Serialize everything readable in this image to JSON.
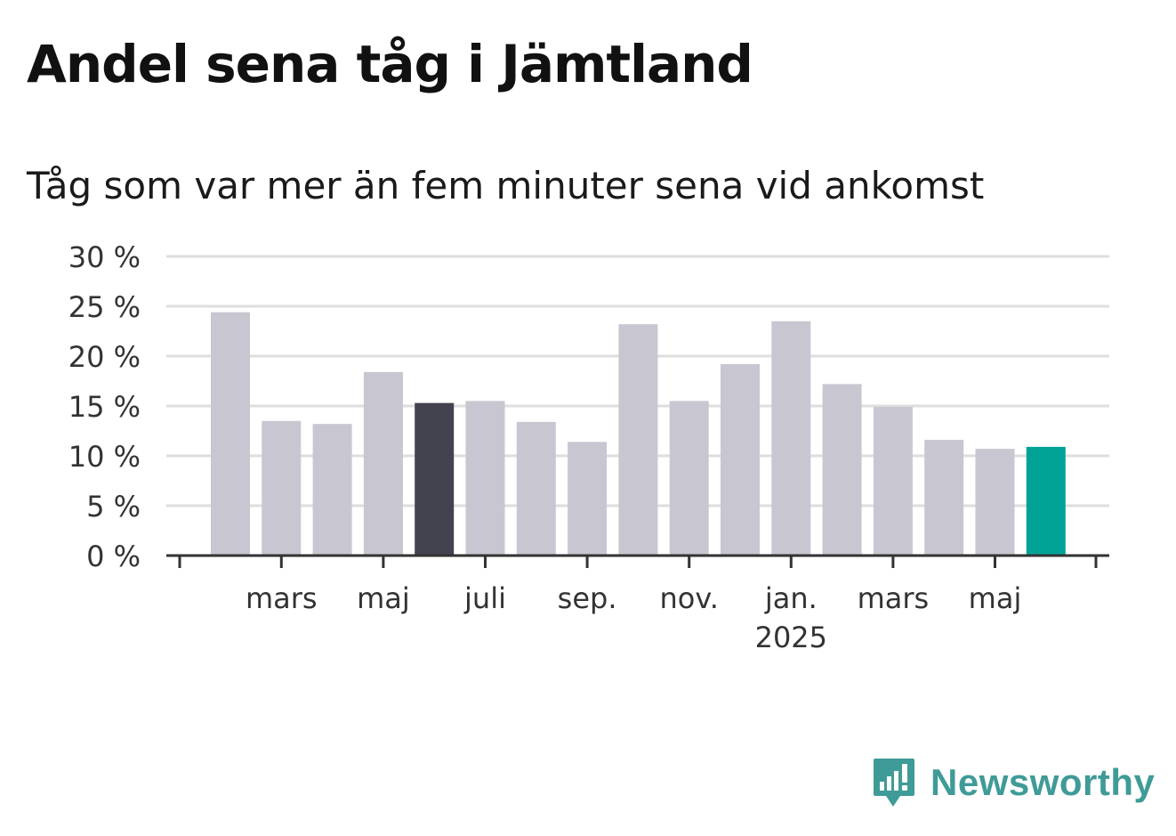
{
  "title": "Andel sena tåg i Jämtland",
  "subtitle": "Tåg som var mer än fem minuter sena vid ankomst",
  "brand": {
    "name": "Newsworthy",
    "color": "#3f9b97",
    "icon": "newsworthy-logo-icon"
  },
  "colors": {
    "bar": "#c8c7d1",
    "highlight_dark": "#43424f",
    "highlight_accent": "#00a396",
    "grid": "#dedede",
    "axis": "#333333"
  },
  "chart_data": {
    "type": "bar",
    "title": "Andel sena tåg i Jämtland",
    "subtitle": "Tåg som var mer än fem minuter sena vid ankomst",
    "xlabel": "",
    "ylabel": "",
    "ylim": [
      0,
      30
    ],
    "yticks": [
      "0 %",
      "5 %",
      "10 %",
      "15 %",
      "20 %",
      "25 %",
      "30 %"
    ],
    "ytick_values": [
      0,
      5,
      10,
      15,
      20,
      25,
      30
    ],
    "grid": true,
    "categories": [
      "2024-02",
      "2024-03",
      "2024-04",
      "2024-05",
      "2024-06",
      "2024-07",
      "2024-08",
      "2024-09",
      "2024-10",
      "2024-11",
      "2024-12",
      "2025-01",
      "2025-02",
      "2025-03",
      "2025-04",
      "2025-05",
      "2025-06"
    ],
    "values": [
      24.4,
      13.5,
      13.2,
      18.4,
      15.3,
      15.5,
      13.4,
      11.4,
      23.2,
      15.5,
      19.2,
      23.5,
      17.2,
      14.9,
      11.6,
      10.7,
      10.9
    ],
    "highlight": {
      "2024-06": "dark",
      "2025-06": "accent"
    },
    "xtick_labels": [
      {
        "label": "mars",
        "at": "2024-03"
      },
      {
        "label": "maj",
        "at": "2024-05"
      },
      {
        "label": "juli",
        "at": "2024-07"
      },
      {
        "label": "sep.",
        "at": "2024-09"
      },
      {
        "label": "nov.",
        "at": "2024-11"
      },
      {
        "label": "jan.",
        "sub": "2025",
        "at": "2025-01"
      },
      {
        "label": "mars",
        "at": "2025-03"
      },
      {
        "label": "maj",
        "at": "2025-05"
      }
    ]
  }
}
